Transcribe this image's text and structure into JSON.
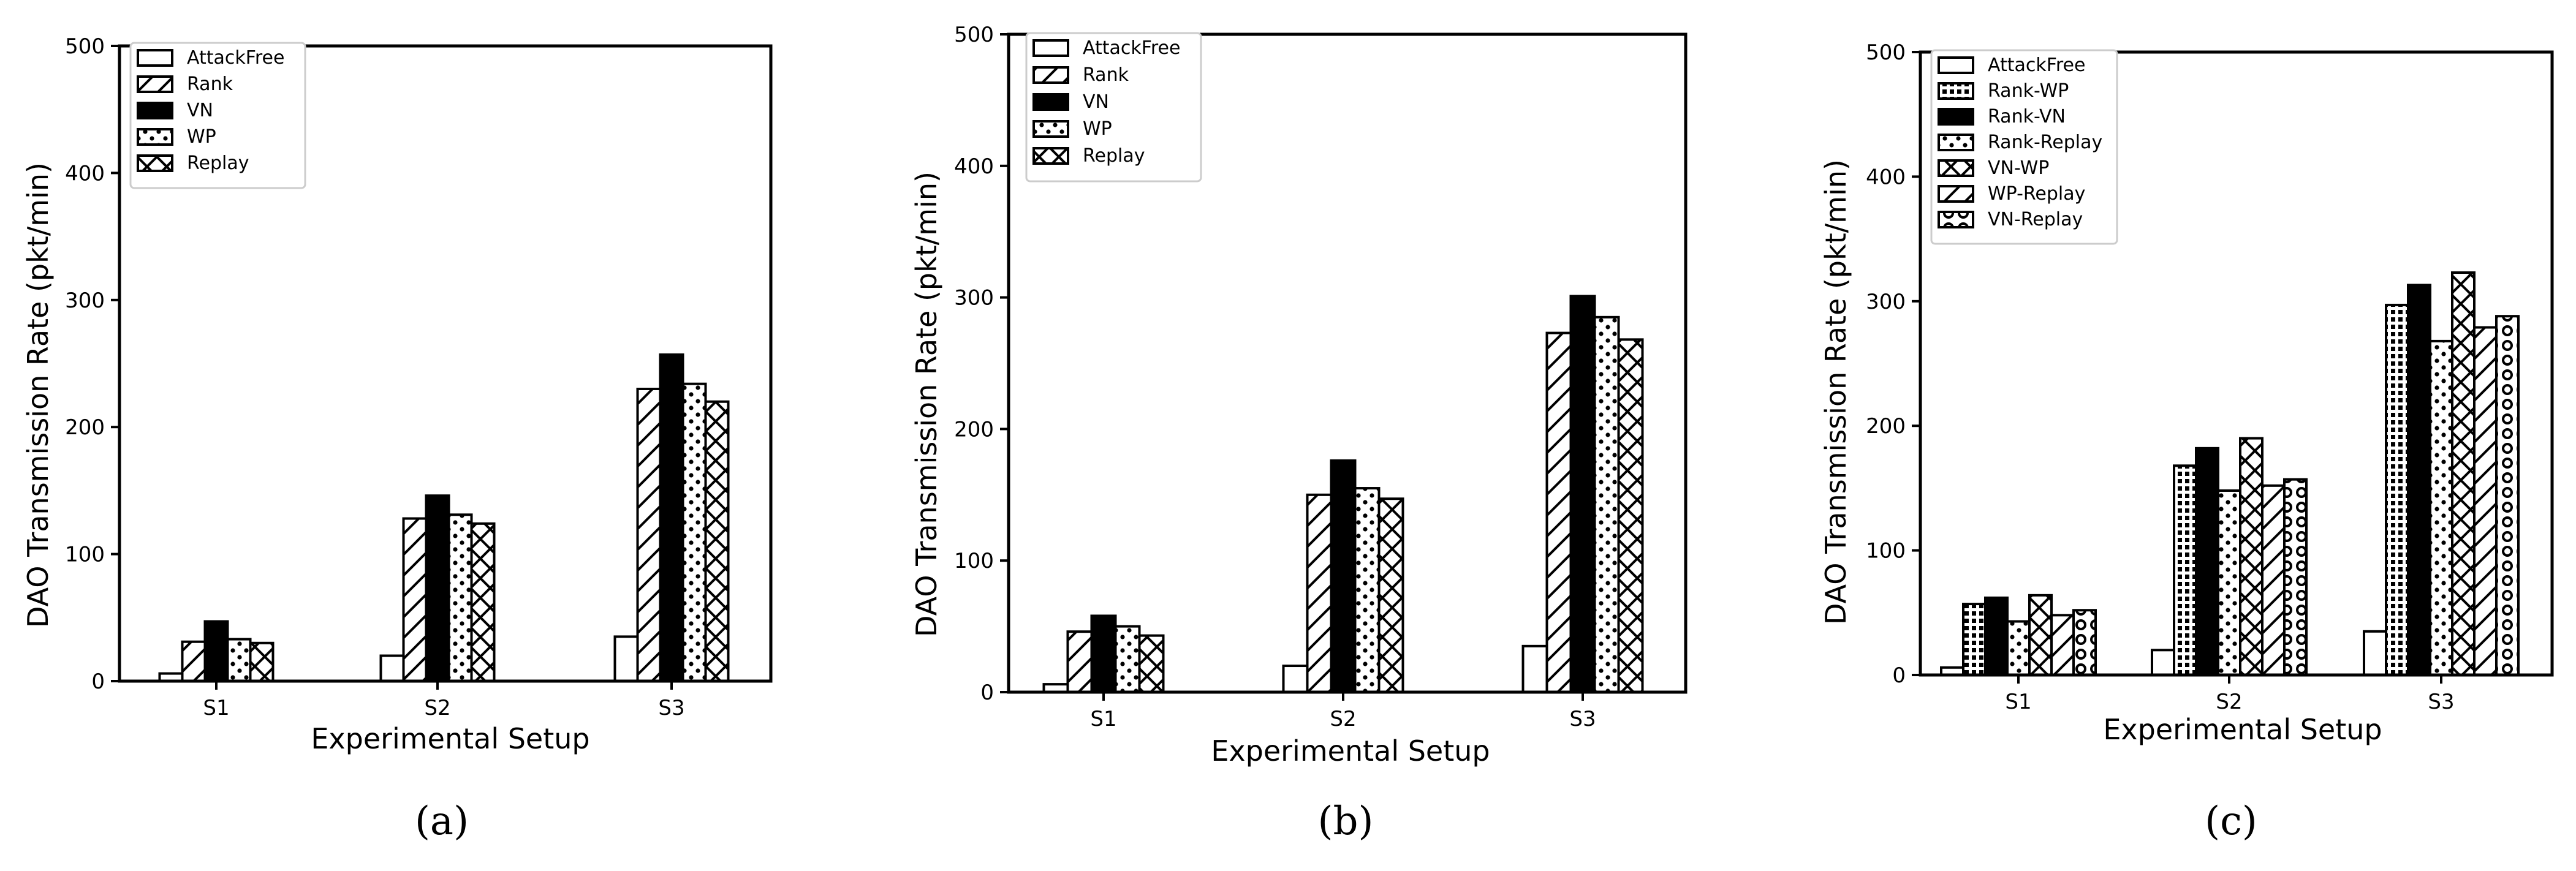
{
  "chart_data": [
    {
      "type": "bar",
      "panel_label": "(a)",
      "xlabel": "Experimental Setup",
      "ylabel": "DAO Transmission Rate (pkt/min)",
      "ylim": [
        0,
        500
      ],
      "yticks": [
        "0",
        "100",
        "200",
        "300",
        "400",
        "500"
      ],
      "categories": [
        "S1",
        "S2",
        "S3"
      ],
      "legend_position": "top-left",
      "series": [
        {
          "name": "AttackFree",
          "pattern": "empty",
          "values": [
            6,
            20,
            35
          ]
        },
        {
          "name": "Rank",
          "pattern": "diag",
          "values": [
            31,
            128,
            230
          ]
        },
        {
          "name": "VN",
          "pattern": "solid",
          "values": [
            47,
            146,
            257
          ]
        },
        {
          "name": "WP",
          "pattern": "dots",
          "values": [
            33,
            131,
            234
          ]
        },
        {
          "name": "Replay",
          "pattern": "cross",
          "values": [
            30,
            124,
            220
          ]
        }
      ]
    },
    {
      "type": "bar",
      "panel_label": "(b)",
      "xlabel": "Experimental Setup",
      "ylabel": "DAO Transmission Rate (pkt/min)",
      "ylim": [
        0,
        500
      ],
      "yticks": [
        "0",
        "100",
        "200",
        "300",
        "400",
        "500"
      ],
      "categories": [
        "S1",
        "S2",
        "S3"
      ],
      "legend_position": "top-left",
      "series": [
        {
          "name": "AttackFree",
          "pattern": "empty",
          "values": [
            6,
            20,
            35
          ]
        },
        {
          "name": "Rank",
          "pattern": "diag",
          "values": [
            46,
            150,
            273
          ]
        },
        {
          "name": "VN",
          "pattern": "solid",
          "values": [
            58,
            176,
            301
          ]
        },
        {
          "name": "WP",
          "pattern": "dots",
          "values": [
            50,
            155,
            285
          ]
        },
        {
          "name": "Replay",
          "pattern": "cross",
          "values": [
            43,
            147,
            268
          ]
        }
      ]
    },
    {
      "type": "bar",
      "panel_label": "(c)",
      "xlabel": "Experimental Setup",
      "ylabel": "DAO Transmission Rate (pkt/min)",
      "ylim": [
        0,
        500
      ],
      "yticks": [
        "0",
        "100",
        "200",
        "300",
        "400",
        "500"
      ],
      "categories": [
        "S1",
        "S2",
        "S3"
      ],
      "legend_position": "top-left",
      "series": [
        {
          "name": "AttackFree",
          "pattern": "empty",
          "values": [
            6,
            20,
            35
          ]
        },
        {
          "name": "Rank-WP",
          "pattern": "grid",
          "values": [
            57,
            168,
            297
          ]
        },
        {
          "name": "Rank-VN",
          "pattern": "solid",
          "values": [
            62,
            182,
            313
          ]
        },
        {
          "name": "Rank-Replay",
          "pattern": "dots",
          "values": [
            43,
            148,
            268
          ]
        },
        {
          "name": "VN-WP",
          "pattern": "cross",
          "values": [
            64,
            190,
            323
          ]
        },
        {
          "name": "WP-Replay",
          "pattern": "diag",
          "values": [
            48,
            152,
            279
          ]
        },
        {
          "name": "VN-Replay",
          "pattern": "rings",
          "values": [
            52,
            157,
            288
          ]
        }
      ]
    }
  ]
}
